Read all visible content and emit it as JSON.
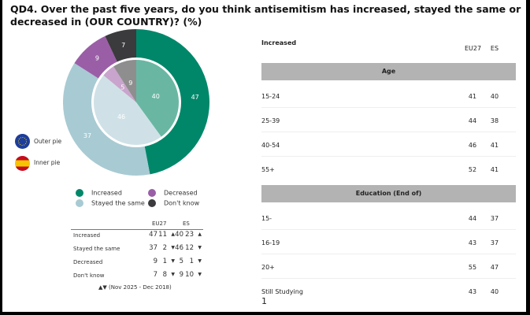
{
  "title": "QD4. Over the past five years, do you think antisemitism has increased, stayed the same or decreased in (OUR COUNTRY)? (%)",
  "chart_data": {
    "type": "pie",
    "title": "QD4. Over the past five years, do you think antisemitism has increased, stayed the same or decreased in (OUR COUNTRY)? (%)",
    "categories": [
      "Increased",
      "Stayed the same",
      "Decreased",
      "Don't know"
    ],
    "colors": [
      "#00876a",
      "#a8cad3",
      "#9a5ea6",
      "#3b3a3c"
    ],
    "inner_colors": [
      "#69b7a3",
      "#cfe1e6",
      "#c9a4cc",
      "#8f8e8f"
    ],
    "series": [
      {
        "name": "Outer pie",
        "values": [
          47,
          37,
          9,
          7
        ]
      },
      {
        "name": "Inner pie",
        "values": [
          40,
          46,
          5,
          9
        ]
      }
    ],
    "legend": "bottom"
  },
  "flags": {
    "outer": "Outer pie",
    "inner": "Inner pie",
    "outer_icon": "eu-flag-icon",
    "inner_icon": "spain-flag-icon"
  },
  "legend": [
    "Increased",
    "Decreased",
    "Stayed the same",
    "Don't know"
  ],
  "summary": {
    "headers": [
      "EU27",
      "ES"
    ],
    "rows": [
      {
        "label": "Increased",
        "eu": "47",
        "eu_change": "11",
        "eu_dir": "▲",
        "es": "40",
        "es_change": "23",
        "es_dir": "▲"
      },
      {
        "label": "Stayed the same",
        "eu": "37",
        "eu_change": "2",
        "eu_dir": "▼",
        "es": "46",
        "es_change": "12",
        "es_dir": "▼"
      },
      {
        "label": "Decreased",
        "eu": "9",
        "eu_change": "1",
        "eu_dir": "▼",
        "es": "5",
        "es_change": "1",
        "es_dir": "▼"
      },
      {
        "label": "Don't know",
        "eu": "7",
        "eu_change": "8",
        "eu_dir": "▼",
        "es": "9",
        "es_change": "10",
        "es_dir": "▼"
      }
    ],
    "note": "▲▼ (Nov 2025 - Dec 2018)"
  },
  "breakdown": {
    "title": "Increased",
    "headers": [
      "EU27",
      "ES"
    ],
    "sections": [
      {
        "name": "Age",
        "rows": [
          {
            "label": "15-24",
            "eu": "41",
            "es": "40"
          },
          {
            "label": "25-39",
            "eu": "44",
            "es": "38"
          },
          {
            "label": "40-54",
            "eu": "46",
            "es": "41"
          },
          {
            "label": "55+",
            "eu": "52",
            "es": "41"
          }
        ]
      },
      {
        "name": "Education (End of)",
        "rows": [
          {
            "label": "15-",
            "eu": "44",
            "es": "37"
          },
          {
            "label": "16-19",
            "eu": "43",
            "es": "37"
          },
          {
            "label": "20+",
            "eu": "55",
            "es": "47"
          },
          {
            "label": "Still Studying",
            "eu": "43",
            "es": "40"
          }
        ]
      }
    ]
  },
  "page_number": "1"
}
